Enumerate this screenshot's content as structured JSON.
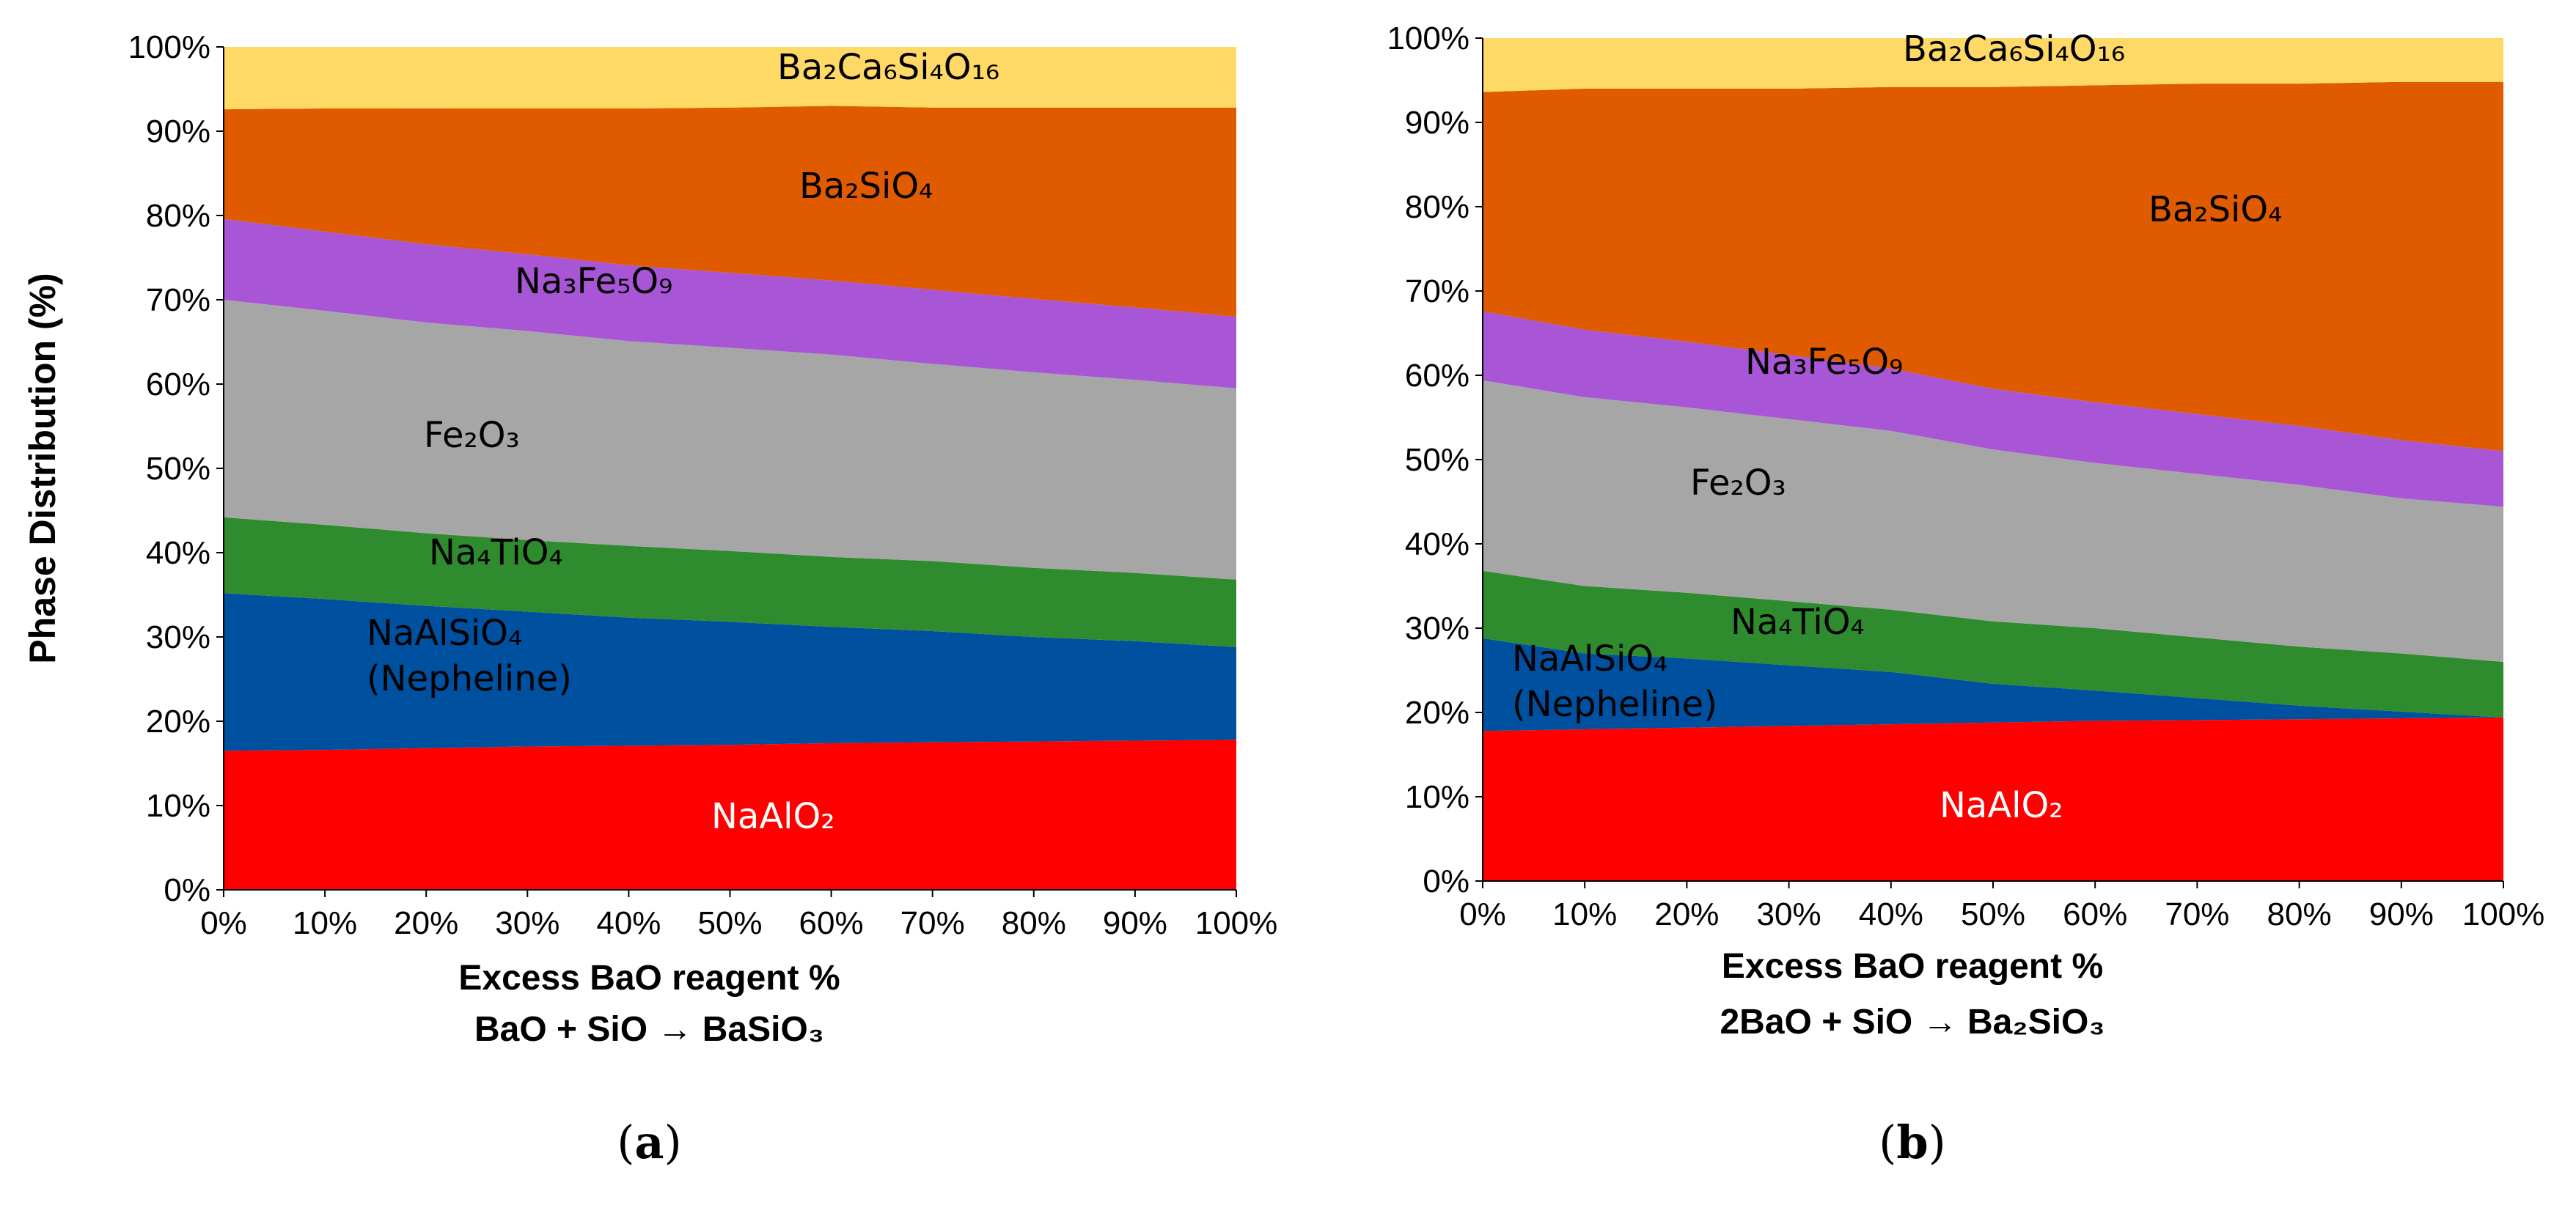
{
  "chart_data": [
    {
      "type": "area",
      "stacked": true,
      "panel": "(a)",
      "caption": "a",
      "x": [
        0,
        10,
        20,
        30,
        40,
        50,
        60,
        70,
        80,
        90,
        100
      ],
      "x_tick_labels": [
        "0%",
        "10%",
        "20%",
        "30%",
        "40%",
        "50%",
        "60%",
        "70%",
        "80%",
        "90%",
        "100%"
      ],
      "y_tick_labels": [
        "0%",
        "10%",
        "20%",
        "30%",
        "40%",
        "50%",
        "60%",
        "70%",
        "80%",
        "90%",
        "100%"
      ],
      "ylim": [
        0,
        100
      ],
      "xlim": [
        0,
        100
      ],
      "ylabel": "Phase Distribution  (%)",
      "xlabel": "Excess  BaO reagent %",
      "reaction": "BaO + SiO → BaSiO₃",
      "series": [
        {
          "name": "NaAlO₂",
          "label_lines": [
            "NaAlO₂"
          ],
          "color": "#ff0000",
          "label_color": "#ffffff",
          "values": [
            16.5,
            16.6,
            16.8,
            17.0,
            17.1,
            17.2,
            17.4,
            17.5,
            17.6,
            17.7,
            17.8
          ]
        },
        {
          "name": "NaAlSiO₄ (Nepheline)",
          "label_lines": [
            "NaAlSiO₄",
            "(Nepheline)"
          ],
          "color": "#0050a0",
          "label_color": "#000000",
          "values": [
            18.7,
            17.9,
            16.9,
            16.0,
            15.2,
            14.6,
            13.8,
            13.2,
            12.4,
            11.8,
            11.0
          ]
        },
        {
          "name": "Na₄TiO₄",
          "label_lines": [
            "Na₄TiO₄"
          ],
          "color": "#2e8b2e",
          "label_color": "#000000",
          "values": [
            9.0,
            8.8,
            8.6,
            8.5,
            8.5,
            8.4,
            8.3,
            8.3,
            8.2,
            8.1,
            8.0
          ]
        },
        {
          "name": "Fe₂O₃",
          "label_lines": [
            "Fe₂O₃"
          ],
          "color": "#a6a6a6",
          "label_color": "#000000",
          "values": [
            25.8,
            25.4,
            25.0,
            24.8,
            24.3,
            24.1,
            24.0,
            23.4,
            23.2,
            22.9,
            22.7
          ]
        },
        {
          "name": "Na₃Fe₅O₉",
          "label_lines": [
            "Na₃Fe₅O₉"
          ],
          "color": "#a855d6",
          "label_color": "#000000",
          "values": [
            9.6,
            9.4,
            9.3,
            9.1,
            9.0,
            8.9,
            8.8,
            8.8,
            8.7,
            8.6,
            8.5
          ]
        },
        {
          "name": "Ba₂SiO₄",
          "label_lines": [
            "Ba₂SiO₄"
          ],
          "color": "#e05a00",
          "label_color": "#000000",
          "values": [
            13.0,
            14.6,
            16.1,
            17.3,
            18.6,
            19.6,
            20.7,
            21.6,
            22.7,
            23.7,
            24.8
          ]
        },
        {
          "name": "Ba₂Ca₆Si₄O₁₆",
          "label_lines": [
            "Ba₂Ca₆Si₄O₁₆"
          ],
          "color": "#ffd966",
          "label_color": "#000000",
          "values": [
            7.4,
            7.3,
            7.3,
            7.3,
            7.3,
            7.2,
            7.0,
            7.2,
            7.2,
            7.2,
            7.2
          ]
        }
      ]
    },
    {
      "type": "area",
      "stacked": true,
      "panel": "(b)",
      "caption": "b",
      "x": [
        0,
        10,
        20,
        30,
        40,
        50,
        60,
        70,
        80,
        90,
        100
      ],
      "x_tick_labels": [
        "0%",
        "10%",
        "20%",
        "30%",
        "40%",
        "50%",
        "60%",
        "70%",
        "80%",
        "90%",
        "100%"
      ],
      "y_tick_labels": [
        "0%",
        "10%",
        "20%",
        "30%",
        "40%",
        "50%",
        "60%",
        "70%",
        "80%",
        "90%",
        "100%"
      ],
      "ylim": [
        0,
        100
      ],
      "xlim": [
        0,
        100
      ],
      "ylabel": "",
      "xlabel": "Excess  BaO reagent %",
      "reaction": "2BaO + SiO → Ba₂SiO₃",
      "series": [
        {
          "name": "NaAlO₂",
          "label_lines": [
            "NaAlO₂"
          ],
          "color": "#ff0000",
          "label_color": "#ffffff",
          "values": [
            17.8,
            18.0,
            18.2,
            18.4,
            18.6,
            18.8,
            19.0,
            19.1,
            19.2,
            19.3,
            19.4
          ]
        },
        {
          "name": "NaAlSiO₄ (Nepheline)",
          "label_lines": [
            "NaAlSiO₄",
            "(Nepheline)"
          ],
          "color": "#0050a0",
          "label_color": "#000000",
          "values": [
            11.0,
            9.0,
            8.2,
            7.2,
            6.2,
            4.6,
            3.6,
            2.6,
            1.6,
            0.8,
            0.0
          ]
        },
        {
          "name": "Na₄TiO₄",
          "label_lines": [
            "Na₄TiO₄"
          ],
          "color": "#2e8b2e",
          "label_color": "#000000",
          "values": [
            8.0,
            8.0,
            7.8,
            7.6,
            7.4,
            7.4,
            7.4,
            7.2,
            7.0,
            6.9,
            6.6
          ]
        },
        {
          "name": "Fe₂O₃",
          "label_lines": [
            "Fe₂O₃"
          ],
          "color": "#a6a6a6",
          "label_color": "#000000",
          "values": [
            22.6,
            22.4,
            22.0,
            21.6,
            21.2,
            20.4,
            19.6,
            19.4,
            19.2,
            18.4,
            18.4
          ]
        },
        {
          "name": "Na₃Fe₅O₉",
          "label_lines": [
            "Na₃Fe₅O₉"
          ],
          "color": "#a855d6",
          "label_color": "#000000",
          "values": [
            8.2,
            8.0,
            7.8,
            7.6,
            7.4,
            7.2,
            7.2,
            7.1,
            7.0,
            6.9,
            6.6
          ]
        },
        {
          "name": "Ba₂SiO₄",
          "label_lines": [
            "Ba₂SiO₄"
          ],
          "color": "#e05a00",
          "label_color": "#000000",
          "values": [
            26.0,
            28.6,
            30.0,
            31.6,
            33.4,
            35.8,
            37.6,
            39.2,
            40.6,
            42.5,
            43.8
          ]
        },
        {
          "name": "Ba₂Ca₆Si₄O₁₆",
          "label_lines": [
            "Ba₂Ca₆Si₄O₁₆"
          ],
          "color": "#ffd966",
          "label_color": "#000000",
          "values": [
            6.4,
            6.0,
            6.0,
            6.0,
            5.8,
            5.8,
            5.6,
            5.4,
            5.4,
            5.2,
            5.2
          ]
        }
      ]
    }
  ]
}
